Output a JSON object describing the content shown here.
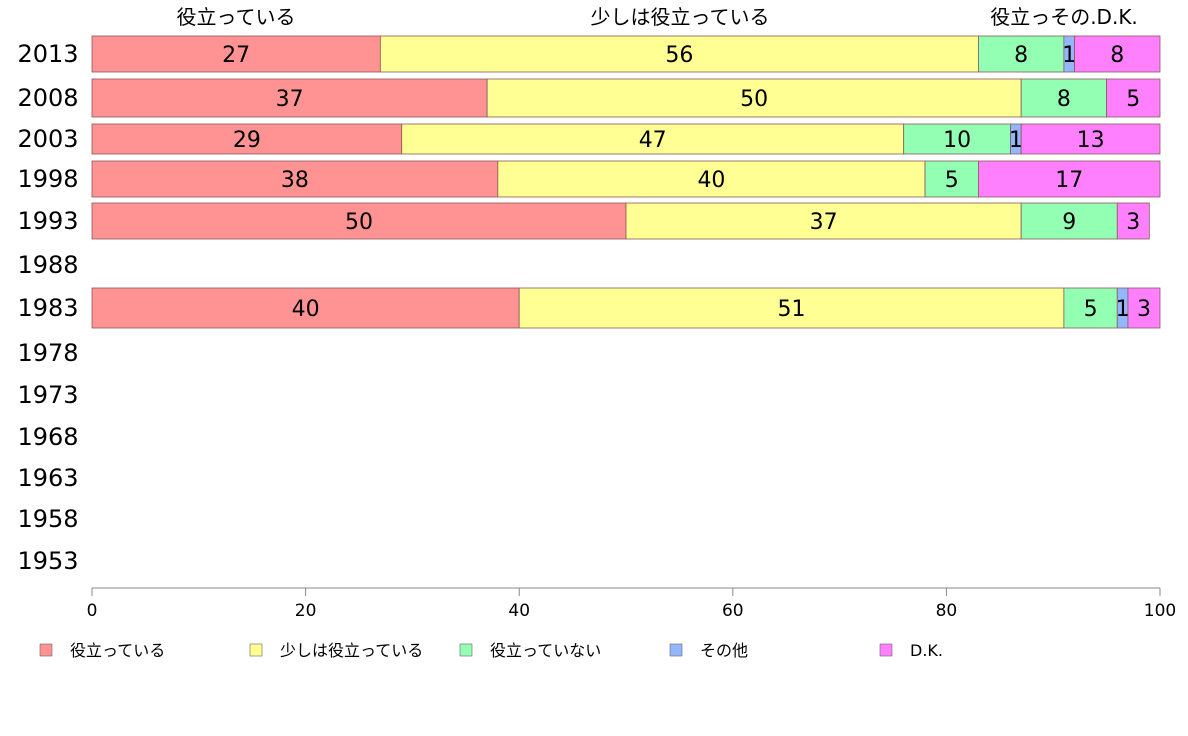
{
  "chart_data": {
    "type": "bar",
    "orientation": "horizontal",
    "stacked": true,
    "column_headers": [
      "役立っている",
      "少しは役立っている",
      "役立っその.D.K."
    ],
    "categories": [
      "2013",
      "2008",
      "2003",
      "1998",
      "1993",
      "1988",
      "1983",
      "1978",
      "1973",
      "1968",
      "1963",
      "1958",
      "1953"
    ],
    "series": [
      {
        "name": "役立っている",
        "color": "#ff9393",
        "values": [
          27,
          37,
          29,
          38,
          50,
          null,
          40,
          null,
          null,
          null,
          null,
          null,
          null
        ]
      },
      {
        "name": "少しは役立っている",
        "color": "#ffff93",
        "values": [
          56,
          50,
          47,
          40,
          37,
          null,
          51,
          null,
          null,
          null,
          null,
          null,
          null
        ]
      },
      {
        "name": "役立っていない",
        "color": "#93ffb3",
        "values": [
          8,
          8,
          10,
          5,
          9,
          null,
          5,
          null,
          null,
          null,
          null,
          null,
          null
        ]
      },
      {
        "name": "その他",
        "color": "#93b7ff",
        "values": [
          1,
          0,
          1,
          0,
          0,
          null,
          1,
          null,
          null,
          null,
          null,
          null,
          null
        ]
      },
      {
        "name": "D.K.",
        "color": "#ff80ff",
        "values": [
          8,
          5,
          13,
          17,
          3,
          null,
          3,
          null,
          null,
          null,
          null,
          null,
          null
        ]
      }
    ],
    "xlim": [
      0,
      100
    ],
    "xticks": [
      "0",
      "20",
      "40",
      "60",
      "80",
      "100"
    ],
    "legend_position": "bottom",
    "grid": false
  }
}
